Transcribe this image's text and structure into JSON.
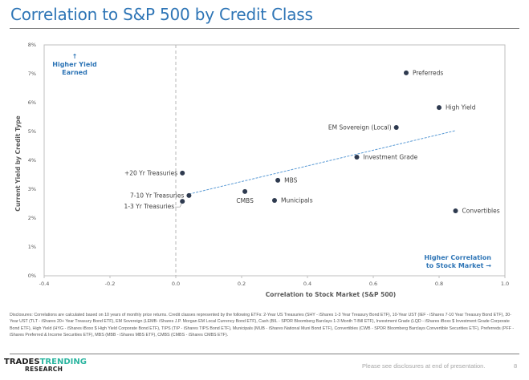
{
  "page": {
    "title": "Correlation to S&P 500 by Credit Class",
    "disclosure": "Disclosures: Correlations are calculated based on 10 years of monthly price returns. Credit classes represented by the following ETFs: 2-Year US Treasuries (SHY - iShares 1-3 Year Treasury Bond ETF), 10-Year UST (IEF - iShares 7-10 Year Treasury Bond ETF),  30-Year UST (TLT - iShares 20+ Year Treasury Bond ETF), EM Sovereign (LEMB- iShares J.P. Morgan EM Local Currency Bond ETF), Cash (BIL - SPDR Bloomberg Barclays 1-3 Month T-Bill ETF), Investment Grade (LQD - iShares iBoxx $ Investment Grade Corporate Bond ETF), High Yield (HYG - iShares iBoxx $ High Yield Corporate Bond ETF), TIPS (TIP - iShares TIPS Bond ETF), Municipals (MUB - iShares National Muni Bond ETF), Convertibles (CWB - SPDR Bloomberg Barclays Convertible Securities ETF), Preferreds (PFF - iShares Preferred & Income Securities ETF), MBS (MBB - iShares MBS ETF), CMBS (CMBS - iShares CMBS ETF).",
    "logo_part1": "TRADES",
    "logo_part2": "TRENDING",
    "logo_part3": "RESEARCH",
    "footnote": "Please see disclosures at end of presentation.",
    "page_number": "8"
  },
  "colors": {
    "title": "#2e75b6",
    "accent": "#2e75b6",
    "point": "#2e3a4f",
    "trendline": "#5b9bd5",
    "logo_green": "#2bb5a0"
  },
  "chart_data": {
    "type": "scatter",
    "title": "Correlation to S&P 500 by Credit Class",
    "xlabel": "Correlation to Stock Market (S&P 500)",
    "ylabel": "Current Yield by Credit Type",
    "xlim": [
      -0.4,
      1.0
    ],
    "ylim": [
      0,
      8
    ],
    "xticks": [
      -0.4,
      -0.2,
      0.0,
      0.2,
      0.4,
      0.6,
      0.8,
      1.0
    ],
    "xtick_labels": [
      "-0.4",
      "-0.2",
      "0.0",
      "0.2",
      "0.4",
      "0.6",
      "0.8",
      "1.0"
    ],
    "yticks": [
      0,
      1,
      2,
      3,
      4,
      5,
      6,
      7,
      8
    ],
    "ytick_labels": [
      "0%",
      "1%",
      "2%",
      "3%",
      "4%",
      "5%",
      "6%",
      "7%",
      "8%"
    ],
    "grid": false,
    "reference_line_x": 0.0,
    "points": [
      {
        "name": "Preferreds",
        "x": 0.7,
        "y": 7.03,
        "label_side": "right"
      },
      {
        "name": "High Yield",
        "x": 0.8,
        "y": 5.83,
        "label_side": "right"
      },
      {
        "name": "EM Sovereign (Local)",
        "x": 0.67,
        "y": 5.14,
        "label_side": "left"
      },
      {
        "name": "Investment Grade",
        "x": 0.55,
        "y": 4.11,
        "label_side": "right"
      },
      {
        "name": "MBS",
        "x": 0.31,
        "y": 3.31,
        "label_side": "right"
      },
      {
        "name": "CMBS",
        "x": 0.21,
        "y": 2.92,
        "label_side": "below"
      },
      {
        "name": "Municipals",
        "x": 0.3,
        "y": 2.61,
        "label_side": "right"
      },
      {
        "name": "Convertibles",
        "x": 0.85,
        "y": 2.25,
        "label_side": "right"
      },
      {
        "name": "+20 Yr Treasuries",
        "x": 0.02,
        "y": 3.56,
        "label_side": "left"
      },
      {
        "name": "7-10 Yr Treasuries",
        "x": 0.04,
        "y": 2.78,
        "label_side": "left"
      },
      {
        "name": "1-3 Yr Treasuries",
        "x": 0.02,
        "y": 2.58,
        "label_side": "left-below"
      }
    ],
    "trendline": {
      "x": [
        0.04,
        0.85
      ],
      "y": [
        2.83,
        5.03
      ],
      "style": "dashed"
    },
    "annotations": [
      {
        "id": "yield",
        "lines": [
          "↑",
          "Higher Yield",
          "Earned"
        ],
        "position": "top-left"
      },
      {
        "id": "correlation",
        "lines": [
          "Higher Correlation",
          "to Stock Market →"
        ],
        "position": "bottom-right"
      }
    ]
  }
}
